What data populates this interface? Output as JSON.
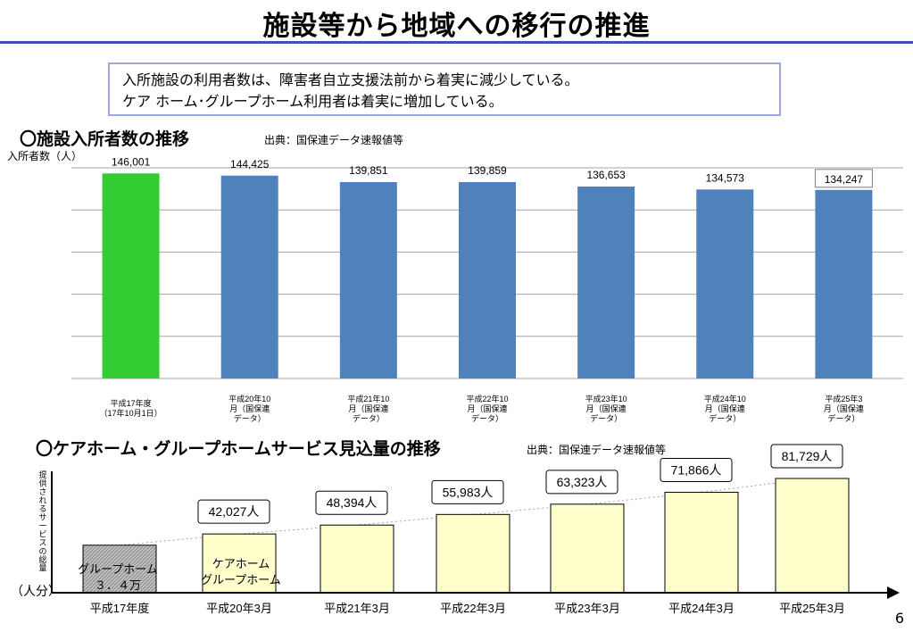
{
  "page": {
    "title": "施設等から地域への移行の推進",
    "summary_lines": [
      "入所施設の利用者数は、障害者自立支援法前から着実に減少している。",
      "ケア ホーム･グループホーム利用者は着実に増加している。"
    ],
    "page_number": "6"
  },
  "colors": {
    "title_rule": "#3f51b5",
    "bar_green": "#33cc33",
    "bar_blue": "#4f81bd",
    "bar_cream": "#ffffcc",
    "bar_hatched": "#bfbfbf"
  },
  "chart_data": [
    {
      "type": "bar",
      "title": "〇施設入所者数の推移",
      "source": "出典：国保連データ速報値等",
      "ylabel": "入所者数（人）",
      "ylim": [
        0,
        150000
      ],
      "grid": true,
      "categories": [
        [
          "平成17年度",
          "（17年10月1日）"
        ],
        [
          "平成20年10",
          "月（国保連",
          "データ）"
        ],
        [
          "平成21年10",
          "月（国保連",
          "データ）"
        ],
        [
          "平成22年10",
          "月（国保連",
          "データ）"
        ],
        [
          "平成23年10",
          "月（国保連",
          "データ）"
        ],
        [
          "平成24年10",
          "月（国保連",
          "データ）"
        ],
        [
          "平成25年3",
          "月（国保連",
          "データ）"
        ]
      ],
      "values": [
        146001,
        144425,
        139851,
        139859,
        136653,
        134573,
        134247
      ],
      "value_labels": [
        "146,001",
        "144,425",
        "139,851",
        "139,859",
        "136,653",
        "134,573",
        "134,247"
      ],
      "highlight_first": "green",
      "boxed_last_label": true
    },
    {
      "type": "bar",
      "title": "〇ケアホーム・グループホームサービス見込量の推移",
      "source": "出典：国保連データ速報値等",
      "ylabel": "提供されるサービスの総量",
      "yunit": "（人分）",
      "categories": [
        "平成17年度",
        "平成20年3月",
        "平成21年3月",
        "平成22年3月",
        "平成23年3月",
        "平成24年3月",
        "平成25年3月"
      ],
      "values": [
        34000,
        42027,
        48394,
        55983,
        63323,
        71866,
        81729
      ],
      "value_labels": [
        "",
        "42,027人",
        "48,394人",
        "55,983人",
        "63,323人",
        "71,866人",
        "81,729人"
      ],
      "first_bar_label": [
        "グループホーム",
        "３．４万"
      ],
      "second_bar_label": [
        "ケアホーム",
        "グループホーム"
      ],
      "trend_line": "dotted"
    }
  ]
}
